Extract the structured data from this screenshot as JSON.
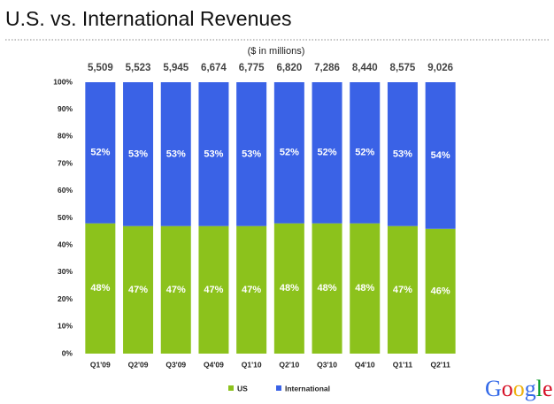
{
  "chart_data": {
    "type": "stacked_bar_100",
    "title": "U.S. vs. International Revenues",
    "subtitle": "($ in millions)",
    "categories": [
      "Q1'09",
      "Q2'09",
      "Q3'09",
      "Q4'09",
      "Q1'10",
      "Q2'10",
      "Q3'10",
      "Q4'10",
      "Q1'11",
      "Q2'11"
    ],
    "totals": {
      "values": [
        5509,
        5523,
        5945,
        6674,
        6775,
        6820,
        7286,
        8440,
        8575,
        9026
      ],
      "value_labels": [
        "5,509",
        "5,523",
        "5,945",
        "6,674",
        "6,775",
        "6,820",
        "7,286",
        "8,440",
        "8,575",
        "9,026"
      ]
    },
    "series": [
      {
        "name": "US",
        "color": "#8cc21c",
        "values": [
          48,
          47,
          47,
          47,
          47,
          48,
          48,
          48,
          47,
          46
        ],
        "value_labels": [
          "48%",
          "47%",
          "47%",
          "47%",
          "47%",
          "48%",
          "48%",
          "48%",
          "47%",
          "46%"
        ]
      },
      {
        "name": "International",
        "color": "#3a62e6",
        "values": [
          52,
          53,
          53,
          53,
          53,
          52,
          52,
          52,
          53,
          54
        ],
        "value_labels": [
          "52%",
          "53%",
          "53%",
          "53%",
          "53%",
          "52%",
          "52%",
          "52%",
          "53%",
          "54%"
        ]
      }
    ],
    "ylim": [
      0,
      100
    ],
    "yticks": [
      {
        "value": 0,
        "label": "0%"
      },
      {
        "value": 10,
        "label": "10%"
      },
      {
        "value": 20,
        "label": "20%"
      },
      {
        "value": 30,
        "label": "30%"
      },
      {
        "value": 40,
        "label": "40%"
      },
      {
        "value": 50,
        "label": "50%"
      },
      {
        "value": 60,
        "label": "60%"
      },
      {
        "value": 70,
        "label": "70%"
      },
      {
        "value": 80,
        "label": "80%"
      },
      {
        "value": 90,
        "label": "90%"
      },
      {
        "value": 100,
        "label": "100%"
      }
    ],
    "logo": "Google"
  }
}
